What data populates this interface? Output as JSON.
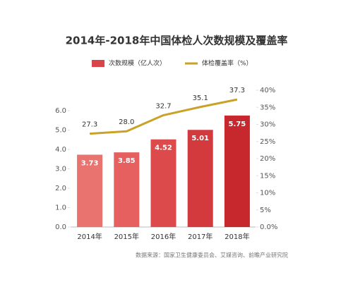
{
  "chart_data": {
    "type": "bar",
    "title": "2014年-2018年中国体检人次数规模及覆盖率",
    "categories": [
      "2014年",
      "2015年",
      "2016年",
      "2017年",
      "2018年"
    ],
    "series": [
      {
        "name": "次数规模（亿人次）",
        "type": "bar",
        "color": "#d9434a",
        "colors": [
          "#e8736f",
          "#e5605f",
          "#dc4a4c",
          "#d23a3e",
          "#c7282e"
        ],
        "values": [
          3.73,
          3.85,
          4.52,
          5.01,
          5.75
        ]
      },
      {
        "name": "体检覆盖率（%）",
        "type": "line",
        "axis": "y2",
        "color": "#c9a227",
        "values": [
          27.3,
          28.0,
          32.7,
          35.1,
          37.3
        ],
        "value_labels": [
          "27.3",
          "28.0",
          "32.7",
          "35.1",
          "37.3"
        ]
      }
    ],
    "ylim": [
      0,
      6
    ],
    "yticks": [
      {
        "value": 0,
        "label": "0.0"
      },
      {
        "value": 1,
        "label": "1.0"
      },
      {
        "value": 2,
        "label": "2.0"
      },
      {
        "value": 3,
        "label": "3.0"
      },
      {
        "value": 4,
        "label": "4.0"
      },
      {
        "value": 5,
        "label": "5.0"
      },
      {
        "value": 6,
        "label": "6.0"
      }
    ],
    "y2lim": [
      0,
      40
    ],
    "y2ticks": [
      {
        "value": 0,
        "label": "0.0%"
      },
      {
        "value": 5,
        "label": "5%"
      },
      {
        "value": 10,
        "label": "10%"
      },
      {
        "value": 15,
        "label": "15%"
      },
      {
        "value": 20,
        "label": "20%"
      },
      {
        "value": 25,
        "label": "25%"
      },
      {
        "value": 30,
        "label": "30%"
      },
      {
        "value": 35,
        "label": "35%"
      },
      {
        "value": 40,
        "label": "40%"
      }
    ],
    "source": "数据来源：国家卫生健康委员会、艾媒咨询、前瞻产业研究院"
  }
}
